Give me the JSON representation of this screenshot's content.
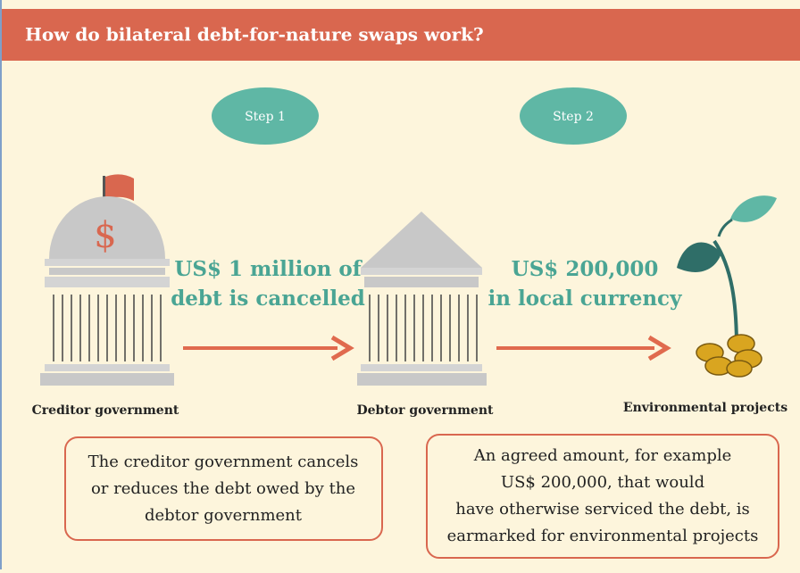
{
  "header": {
    "title": "How do bilateral debt-for-nature swaps work?"
  },
  "steps": [
    {
      "label": "Step 1",
      "amount_lines": [
        "US$ 1 million of",
        "debt is cancelled"
      ]
    },
    {
      "label": "Step 2",
      "amount_lines": [
        "US$ 200,000",
        "in local currency"
      ]
    }
  ],
  "nodes": [
    {
      "label": "Creditor government",
      "symbol": "$"
    },
    {
      "label": "Debtor government"
    },
    {
      "label": "Environmental projects"
    }
  ],
  "notes": [
    {
      "lines": [
        "The creditor government cancels",
        "or reduces the debt owed by the",
        "debtor government"
      ]
    },
    {
      "lines": [
        "An agreed amount, for example",
        "US$ 200,000, that would",
        "have otherwise serviced the debt, is",
        "earmarked for environmental projects"
      ]
    }
  ]
}
